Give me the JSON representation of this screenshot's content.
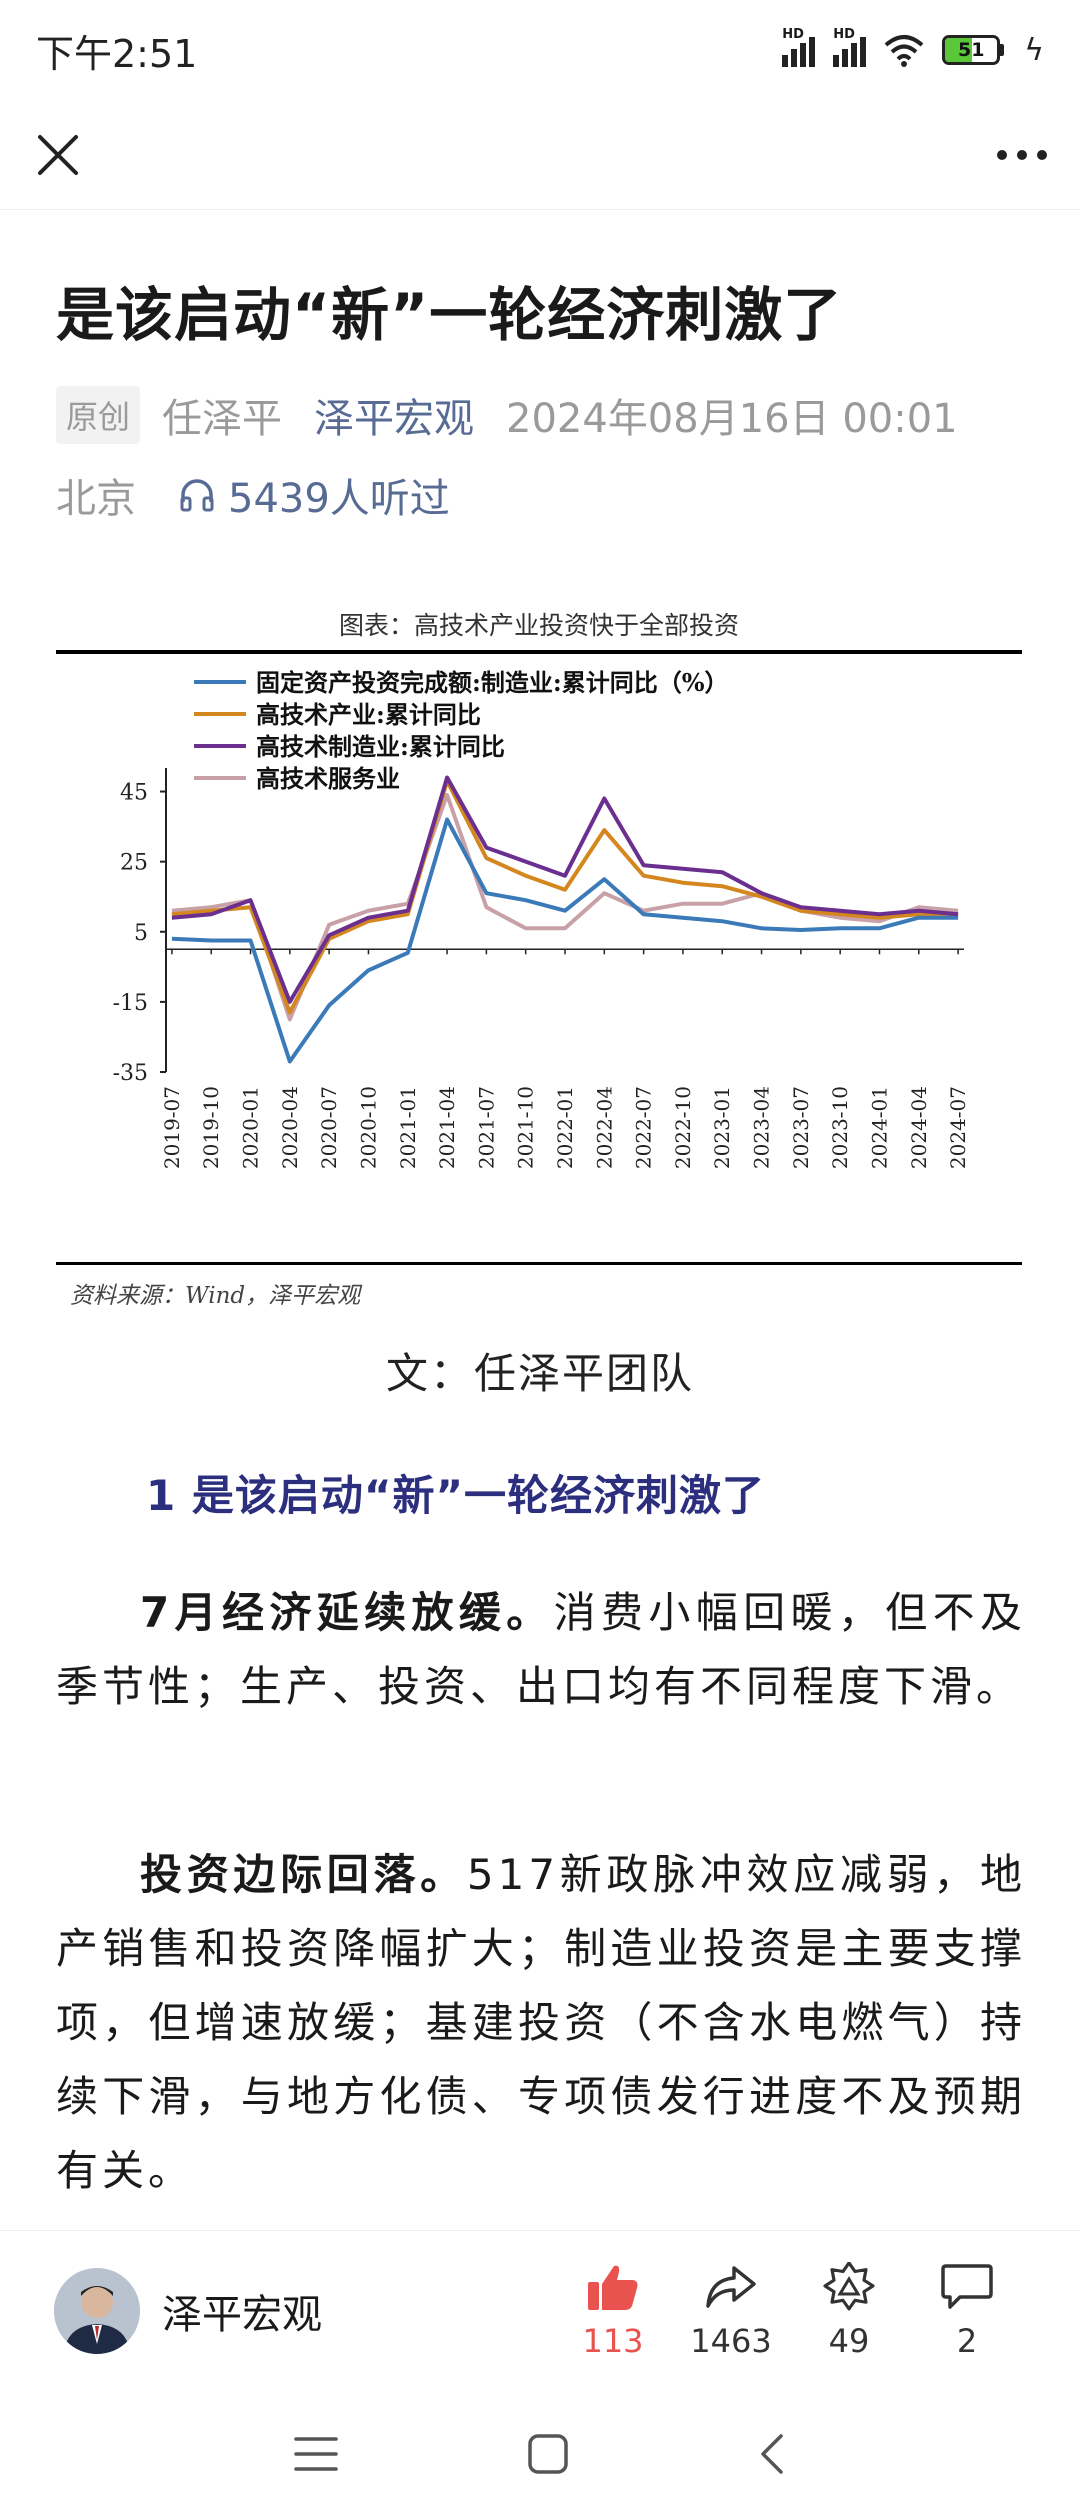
{
  "status_bar": {
    "time": "下午2:51",
    "network_label_1": "HD",
    "network_label_2": "HD",
    "battery_level": "51"
  },
  "nav": {
    "close_icon": "close-icon",
    "more_icon": "more-icon"
  },
  "article": {
    "title": "是该启动“新”一轮经济刺激了",
    "badge": "原创",
    "author": "任泽平",
    "account": "泽平宏观",
    "datetime": "2024年08月16日 00:01",
    "location": "北京",
    "listen_count": "5439人听过",
    "team_line": "文：任泽平团队",
    "section_heading": "1  是该启动“新”一轮经济刺激了",
    "para1_bold": "7月经济延续放缓。",
    "para1_text": "消费小幅回暖，但不及季节性；生产、投资、出口均有不同程度下滑。",
    "para2_bold": "投资边际回落。",
    "para2_text": "517新政脉冲效应减弱，地产销售和投资降幅扩大；制造业投资是主要支撑项，但增速放缓；基建投资（不含水电燃气）持续下滑，与地方化债、专项债发行进度不及预期有关。"
  },
  "figure": {
    "caption": "图表：高技术产业投资快于全部投资",
    "source": "资料来源：Wind，泽平宏观"
  },
  "chart_data": {
    "type": "line",
    "title": "",
    "xlabel": "",
    "ylabel": "",
    "ylim": [
      -35,
      50
    ],
    "yticks": [
      45,
      25,
      5,
      -15,
      -35
    ],
    "grid": false,
    "legend_position": "top-left",
    "x": [
      "2019-07",
      "2019-10",
      "2020-01",
      "2020-04",
      "2020-07",
      "2020-10",
      "2021-01",
      "2021-04",
      "2021-07",
      "2021-10",
      "2022-01",
      "2022-04",
      "2022-07",
      "2022-10",
      "2023-01",
      "2023-04",
      "2023-07",
      "2023-10",
      "2024-01",
      "2024-04",
      "2024-07"
    ],
    "series": [
      {
        "name": "固定资产投资完成额:制造业:累计同比（%）",
        "color": "#3a7ab8",
        "values": [
          3,
          2.5,
          2.5,
          -32,
          -16,
          -6,
          -1,
          37,
          16,
          14,
          11,
          20,
          10,
          9,
          8,
          6,
          5.5,
          6,
          6,
          9,
          9
        ]
      },
      {
        "name": "高技术产业:累计同比",
        "color": "#d4871e",
        "values": [
          10,
          11,
          12,
          -18,
          3,
          8,
          10,
          48,
          26,
          21,
          17,
          34,
          21,
          19,
          18,
          15,
          11,
          10,
          9,
          10,
          10
        ]
      },
      {
        "name": "高技术制造业:累计同比",
        "color": "#6b2f8f",
        "values": [
          9,
          10,
          14,
          -15,
          4,
          9,
          11,
          49,
          29,
          25,
          21,
          43,
          24,
          23,
          22,
          16,
          12,
          11,
          10,
          11,
          10
        ]
      },
      {
        "name": "高技术服务业",
        "color": "#c8a0a8",
        "values": [
          11,
          12,
          14,
          -20,
          7,
          11,
          13,
          44,
          12,
          6,
          6,
          16,
          11,
          13,
          13,
          16,
          11,
          9,
          8,
          12,
          11
        ]
      }
    ]
  },
  "author_bar": {
    "name": "泽平宏观",
    "actions": [
      {
        "label": "113",
        "icon": "thumbs-up-icon"
      },
      {
        "label": "1463",
        "icon": "share-icon"
      },
      {
        "label": "49",
        "icon": "recommend-icon"
      },
      {
        "label": "2",
        "icon": "comment-icon"
      }
    ]
  },
  "system_nav": {
    "menu_icon": "menu-icon",
    "home_icon": "home-icon",
    "back_icon": "back-icon"
  }
}
